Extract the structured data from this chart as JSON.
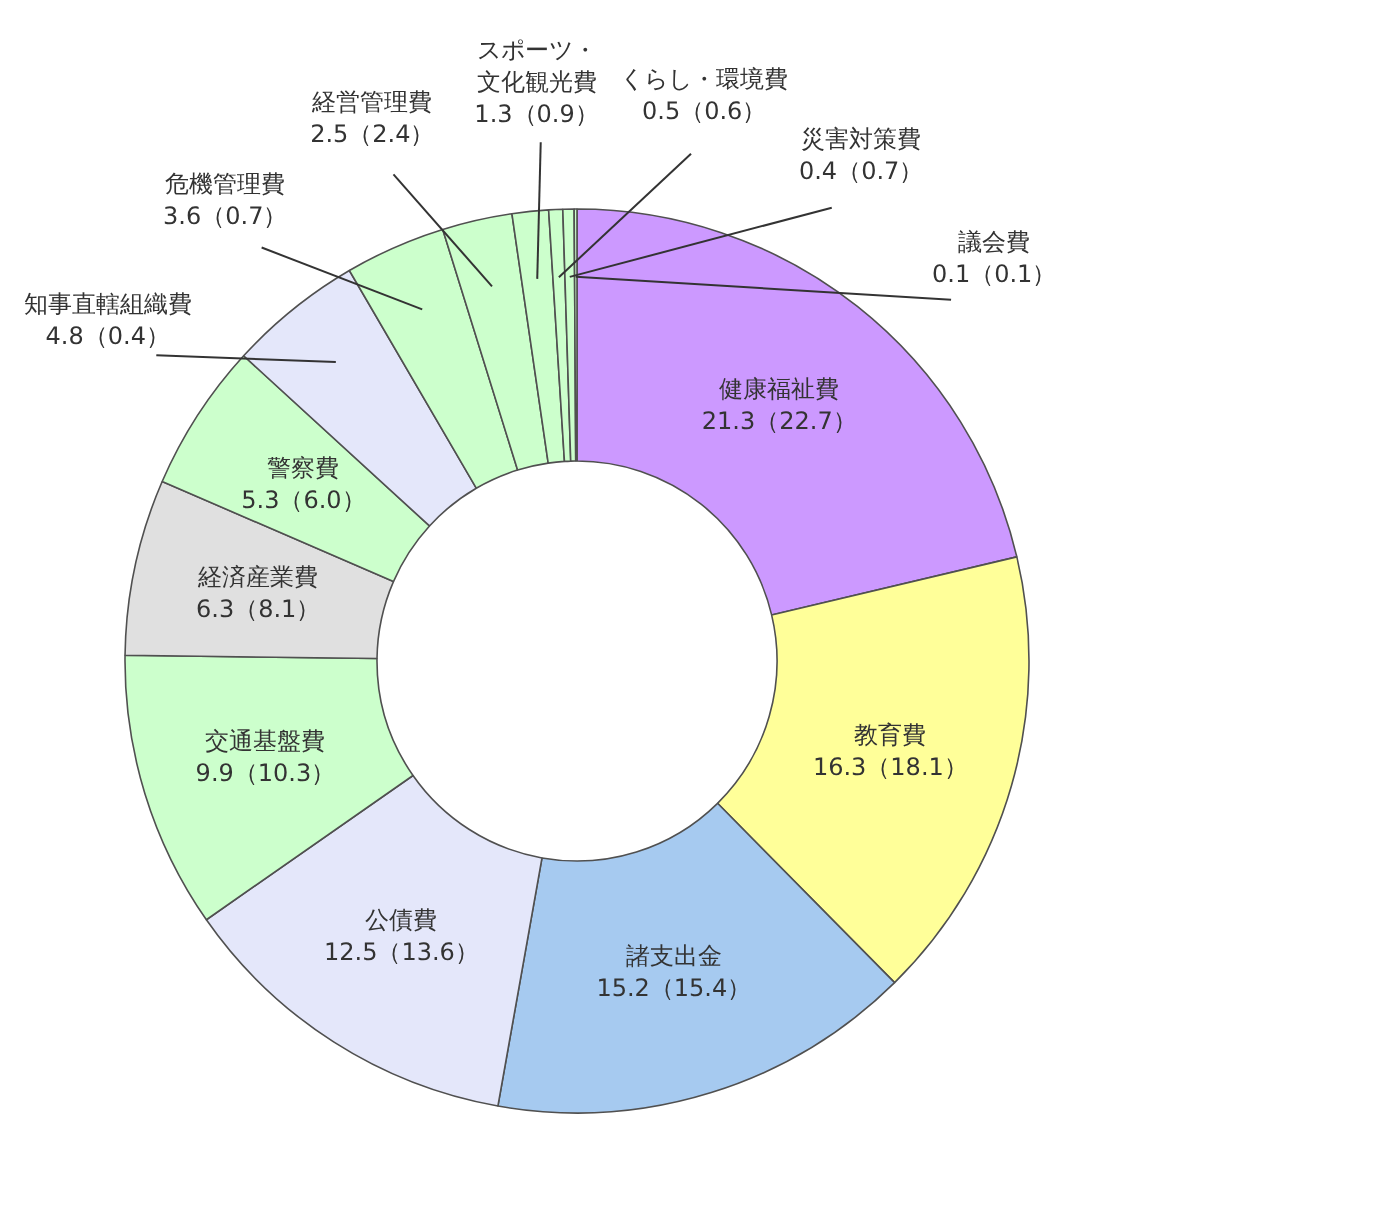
{
  "chart_data": {
    "type": "donut",
    "categories": [
      "健康福祉費",
      "教育費",
      "諸支出金",
      "公債費",
      "交通基盤費",
      "経済産業費",
      "警察費",
      "知事直轄組織費",
      "危機管理費",
      "経営管理費",
      "スポーツ・文化観光費",
      "くらし・環境費",
      "災害対策費",
      "議会費"
    ],
    "values": [
      21.3,
      16.3,
      15.2,
      12.5,
      9.9,
      6.3,
      5.3,
      4.8,
      3.6,
      2.5,
      1.3,
      0.5,
      0.4,
      0.1
    ],
    "colors": [
      "#cc99ff",
      "#ffff99",
      "#a6caf0",
      "#e4e7fa",
      "#ccffcc",
      "#e0e0e0",
      "#ccffcc",
      "#e4e7fa",
      "#ccffcc",
      "#ccffcc",
      "#ccffcc",
      "#ccffcc",
      "#ccffcc",
      "#ccffcc"
    ],
    "value_labels": [
      "21.3（22.7）",
      "16.3（18.1）",
      "15.2（15.4）",
      "12.5（13.6）",
      "9.9（10.3）",
      "6.3（8.1）",
      "5.3（6.0）",
      "4.8（0.4）",
      "3.6（0.7）",
      "2.5（2.4）",
      "1.3（0.9）",
      "0.5（0.6）",
      "0.4（0.7）",
      "0.1（0.1）"
    ]
  }
}
